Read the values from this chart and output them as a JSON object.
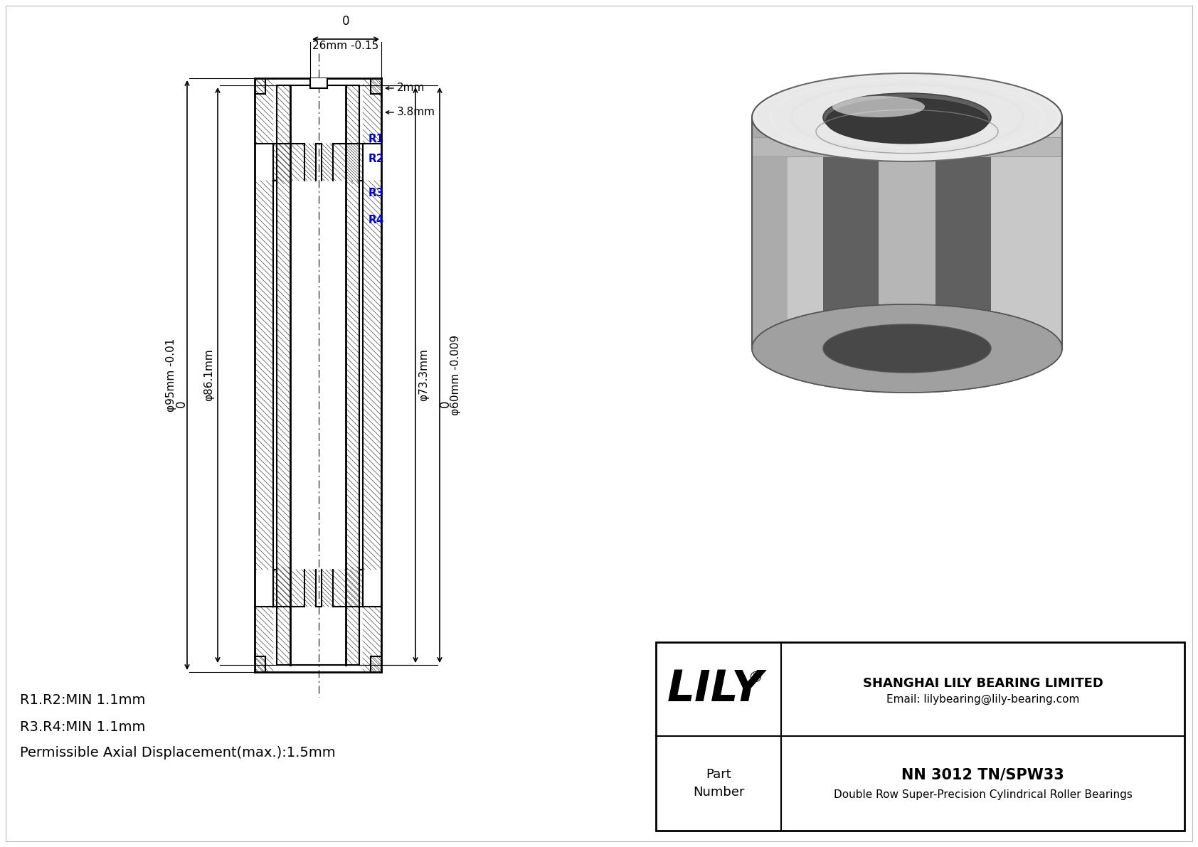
{
  "bg_color": "#ffffff",
  "drawing_color": "#000000",
  "blue_color": "#0000cd",
  "title_company": "SHANGHAI LILY BEARING LIMITED",
  "title_email": "Email: lilybearing@lily-bearing.com",
  "part_number": "NN 3012 TN/SPW33",
  "part_desc": "Double Row Super-Precision Cylindrical Roller Bearings",
  "dim_26mm": "26mm -0.15",
  "dim_0_top": "0",
  "dim_2mm": "2mm",
  "dim_3p8mm": "3.8mm",
  "dim_outer_0": "0",
  "dim_outer": "φ95mm -0.01",
  "dim_outer2": "φ86.1mm",
  "dim_inner_0": "0",
  "dim_inner": "φ60mm -0.009",
  "dim_inner2": "φ73.3mm",
  "note1": "R1.R2:MIN 1.1mm",
  "note2": "R3.R4:MIN 1.1mm",
  "note3": "Permissible Axial Displacement(max.):1.5mm"
}
